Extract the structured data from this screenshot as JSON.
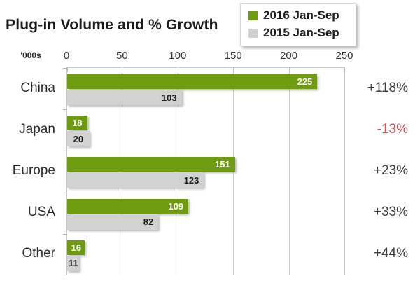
{
  "title": "Plug-in Volume and % Growth",
  "axis": {
    "unit_label": "'000s"
  },
  "chart_data": {
    "type": "bar",
    "orientation": "horizontal",
    "title": "Plug-in Volume and % Growth",
    "xlabel": "'000s",
    "xlim": [
      0,
      250
    ],
    "x_ticks": [
      0,
      50,
      100,
      150,
      200,
      250
    ],
    "grid": true,
    "legend_position": "top-right",
    "categories": [
      "China",
      "Japan",
      "Europe",
      "USA",
      "Other"
    ],
    "series": [
      {
        "name": "2016 Jan-Sep",
        "color": "#6e9b10",
        "values": [
          225,
          18,
          151,
          109,
          16
        ]
      },
      {
        "name": "2015 Jan-Sep",
        "color": "#d2d2d2",
        "values": [
          103,
          20,
          123,
          82,
          11
        ]
      }
    ],
    "growth": [
      {
        "label": "+118%",
        "color": "#3f3f3f"
      },
      {
        "label": "-13%",
        "color": "#d85050"
      },
      {
        "label": "+23%",
        "color": "#3f3f3f"
      },
      {
        "label": "+33%",
        "color": "#3f3f3f"
      },
      {
        "label": "+44%",
        "color": "#3f3f3f"
      }
    ]
  },
  "colors": {
    "grid": "#c9c9c9",
    "axis": "#c8c8c8",
    "bar_label_on_2016": "#ffffff",
    "bar_label_on_2015": "#1a1a1a",
    "tick_label": "#333333",
    "category_label": "#2b2b2b",
    "title": "#1b1b1b"
  }
}
